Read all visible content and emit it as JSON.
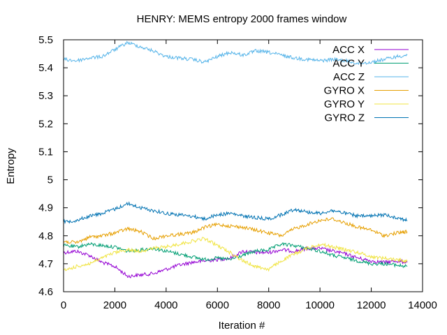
{
  "chart_data": {
    "type": "line",
    "title": "HENRY: MEMS entropy 2000 frames window",
    "xlabel": "Iteration #",
    "ylabel": "Entropy",
    "xlim": [
      0,
      14000
    ],
    "ylim": [
      4.6,
      5.5
    ],
    "xticks": [
      0,
      2000,
      4000,
      6000,
      8000,
      10000,
      12000,
      14000
    ],
    "yticks": [
      4.6,
      4.7,
      4.8,
      4.9,
      5,
      5.1,
      5.2,
      5.3,
      5.4,
      5.5
    ],
    "xtick_labels": [
      "0",
      "2000",
      "4000",
      "6000",
      "8000",
      "10000",
      "12000",
      "14000"
    ],
    "ytick_labels": [
      "4.6",
      "4.7",
      "4.8",
      "4.9",
      "5",
      "5.1",
      "5.2",
      "5.3",
      "5.4",
      "5.5"
    ],
    "grid": false,
    "legend_position": "top-right",
    "series": [
      {
        "name": "ACC X",
        "color": "#9400d3",
        "x": [
          0,
          500,
          1000,
          1500,
          2000,
          2500,
          3000,
          3500,
          4000,
          4500,
          5000,
          5500,
          6000,
          6500,
          7000,
          7500,
          8000,
          8500,
          9000,
          9500,
          10000,
          10500,
          11000,
          11500,
          12000,
          12500,
          13000,
          13400
        ],
        "y": [
          4.74,
          4.745,
          4.73,
          4.705,
          4.69,
          4.655,
          4.66,
          4.665,
          4.68,
          4.695,
          4.705,
          4.71,
          4.715,
          4.72,
          4.745,
          4.74,
          4.74,
          4.75,
          4.745,
          4.755,
          4.755,
          4.745,
          4.735,
          4.72,
          4.71,
          4.705,
          4.71,
          4.705
        ]
      },
      {
        "name": "ACC Y",
        "color": "#009e73",
        "x": [
          0,
          500,
          1000,
          1500,
          2000,
          2500,
          3000,
          3500,
          4000,
          4500,
          5000,
          5500,
          6000,
          6500,
          7000,
          7500,
          8000,
          8500,
          9000,
          9500,
          10000,
          10500,
          11000,
          11500,
          12000,
          12500,
          13000,
          13400
        ],
        "y": [
          4.765,
          4.76,
          4.77,
          4.765,
          4.76,
          4.745,
          4.75,
          4.755,
          4.745,
          4.735,
          4.725,
          4.715,
          4.72,
          4.715,
          4.73,
          4.745,
          4.75,
          4.77,
          4.765,
          4.755,
          4.745,
          4.73,
          4.72,
          4.71,
          4.7,
          4.7,
          4.695,
          4.69
        ]
      },
      {
        "name": "ACC Z",
        "color": "#56b4e9",
        "x": [
          0,
          500,
          1000,
          1500,
          2000,
          2500,
          3000,
          3500,
          4000,
          4500,
          5000,
          5500,
          6000,
          6500,
          7000,
          7500,
          8000,
          8500,
          9000,
          9500,
          10000,
          10500,
          11000,
          11500,
          12000,
          12500,
          13000,
          13400
        ],
        "y": [
          5.43,
          5.425,
          5.435,
          5.44,
          5.465,
          5.49,
          5.475,
          5.46,
          5.44,
          5.435,
          5.43,
          5.42,
          5.44,
          5.455,
          5.445,
          5.46,
          5.455,
          5.445,
          5.435,
          5.43,
          5.425,
          5.43,
          5.425,
          5.415,
          5.42,
          5.43,
          5.44,
          5.445
        ]
      },
      {
        "name": "GYRO X",
        "color": "#e69f00",
        "x": [
          0,
          500,
          1000,
          1500,
          2000,
          2500,
          3000,
          3500,
          4000,
          4500,
          5000,
          5500,
          6000,
          6500,
          7000,
          7500,
          8000,
          8500,
          9000,
          9500,
          10000,
          10500,
          11000,
          11500,
          12000,
          12500,
          13000,
          13400
        ],
        "y": [
          4.78,
          4.775,
          4.795,
          4.8,
          4.81,
          4.825,
          4.815,
          4.79,
          4.8,
          4.805,
          4.81,
          4.83,
          4.84,
          4.835,
          4.83,
          4.82,
          4.81,
          4.8,
          4.825,
          4.84,
          4.855,
          4.86,
          4.845,
          4.83,
          4.82,
          4.8,
          4.81,
          4.815
        ]
      },
      {
        "name": "GYRO Y",
        "color": "#f0e442",
        "x": [
          0,
          500,
          1000,
          1500,
          2000,
          2500,
          3000,
          3500,
          4000,
          4500,
          5000,
          5500,
          6000,
          6500,
          7000,
          7500,
          8000,
          8500,
          9000,
          9500,
          10000,
          10500,
          11000,
          11500,
          12000,
          12500,
          13000,
          13400
        ],
        "y": [
          4.675,
          4.69,
          4.7,
          4.72,
          4.74,
          4.75,
          4.745,
          4.755,
          4.76,
          4.77,
          4.78,
          4.79,
          4.765,
          4.74,
          4.71,
          4.69,
          4.68,
          4.71,
          4.735,
          4.755,
          4.77,
          4.76,
          4.75,
          4.74,
          4.725,
          4.72,
          4.715,
          4.71
        ]
      },
      {
        "name": "GYRO Z",
        "color": "#0072b2",
        "x": [
          0,
          500,
          1000,
          1500,
          2000,
          2500,
          3000,
          3500,
          4000,
          4500,
          5000,
          5500,
          6000,
          6500,
          7000,
          7500,
          8000,
          8500,
          9000,
          9500,
          10000,
          10500,
          11000,
          11500,
          12000,
          12500,
          13000,
          13400
        ],
        "y": [
          4.85,
          4.855,
          4.87,
          4.88,
          4.895,
          4.915,
          4.9,
          4.89,
          4.88,
          4.875,
          4.87,
          4.86,
          4.875,
          4.88,
          4.87,
          4.865,
          4.86,
          4.875,
          4.895,
          4.885,
          4.88,
          4.89,
          4.88,
          4.87,
          4.87,
          4.875,
          4.865,
          4.855
        ]
      }
    ]
  }
}
